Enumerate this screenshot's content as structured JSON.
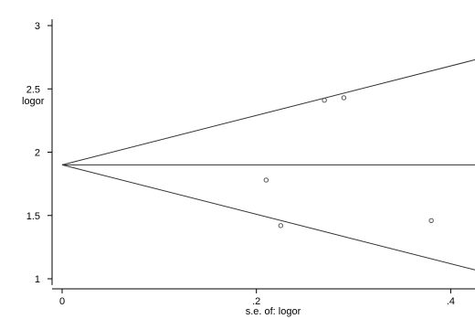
{
  "chart_data": {
    "type": "scatter",
    "title": "",
    "xlabel": "s.e. of: logor",
    "ylabel": "logor",
    "x_ticks": [
      {
        "value": 0,
        "label": "0"
      },
      {
        "value": 0.2,
        "label": ".2"
      },
      {
        "value": 0.4,
        "label": ".4"
      }
    ],
    "y_ticks": [
      {
        "value": 1,
        "label": "1"
      },
      {
        "value": 1.5,
        "label": "1.5"
      },
      {
        "value": 2,
        "label": "2"
      },
      {
        "value": 2.5,
        "label": "2.5"
      },
      {
        "value": 3,
        "label": "3"
      }
    ],
    "xlim": [
      0,
      0.425
    ],
    "ylim": [
      0.95,
      3.05
    ],
    "points": [
      {
        "x": 0.21,
        "y": 1.78
      },
      {
        "x": 0.225,
        "y": 1.42
      },
      {
        "x": 0.27,
        "y": 2.41
      },
      {
        "x": 0.29,
        "y": 2.43
      },
      {
        "x": 0.38,
        "y": 1.46
      }
    ],
    "pooled_estimate": 1.9,
    "funnel_limits": {
      "upper": [
        {
          "x": 0,
          "y": 1.9
        },
        {
          "x": 0.425,
          "y": 2.73
        }
      ],
      "lower": [
        {
          "x": 0,
          "y": 1.9
        },
        {
          "x": 0.425,
          "y": 1.07
        }
      ]
    },
    "grid": false,
    "legend": "none",
    "colors": {
      "lines": "#333333",
      "points": "#555555",
      "axes": "#000000"
    }
  }
}
